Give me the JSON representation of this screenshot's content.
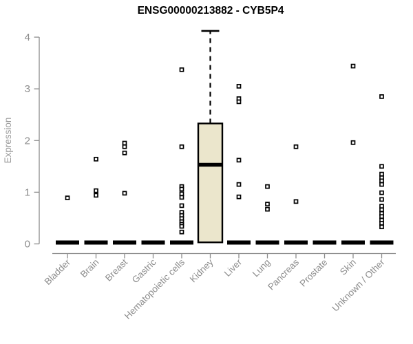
{
  "page": {
    "background": "#ffffff"
  },
  "chart_data": {
    "type": "boxplot",
    "title": "ENSG00000213882 - CYB5P4",
    "ylabel": "Expression",
    "xlabel": "",
    "ylim": [
      0,
      4
    ],
    "yticks": [
      0,
      1,
      2,
      3,
      4
    ],
    "grid": false,
    "legend_position": "none",
    "categories": [
      "Bladder",
      "Brain",
      "Breast",
      "Gastric",
      "Hematopoietic cells",
      "Kidney",
      "Liver",
      "Lung",
      "Pancreas",
      "Prostate",
      "Skin",
      "Unknown / Other"
    ],
    "series": [
      {
        "category": "Bladder",
        "q1": 0,
        "median": 0,
        "q3": 0,
        "whisker_low": 0,
        "whisker_high": 0,
        "outliers": [
          0.89
        ]
      },
      {
        "category": "Brain",
        "q1": 0,
        "median": 0,
        "q3": 0,
        "whisker_low": 0,
        "whisker_high": 0,
        "outliers": [
          1.64,
          1.03,
          0.94
        ]
      },
      {
        "category": "Breast",
        "q1": 0,
        "median": 0,
        "q3": 0,
        "whisker_low": 0,
        "whisker_high": 0,
        "outliers": [
          1.95,
          1.88,
          1.76,
          0.98
        ]
      },
      {
        "category": "Gastric",
        "q1": 0,
        "median": 0,
        "q3": 0,
        "whisker_low": 0,
        "whisker_high": 0,
        "outliers": []
      },
      {
        "category": "Hematopoietic cells",
        "q1": 0,
        "median": 0,
        "q3": 0,
        "whisker_low": 0,
        "whisker_high": 0,
        "outliers": [
          3.37,
          1.88,
          1.11,
          1.06,
          0.97,
          0.9,
          0.74,
          0.61,
          0.55,
          0.49,
          0.43,
          0.38,
          0.34,
          0.23
        ]
      },
      {
        "category": "Kidney",
        "q1": 0.03,
        "median": 1.53,
        "q3": 2.33,
        "whisker_low": 0.03,
        "whisker_high": 4.12,
        "outliers": []
      },
      {
        "category": "Liver",
        "q1": 0,
        "median": 0,
        "q3": 0,
        "whisker_low": 0,
        "whisker_high": 0,
        "outliers": [
          3.05,
          2.81,
          2.75,
          1.62,
          1.15,
          0.91
        ]
      },
      {
        "category": "Lung",
        "q1": 0,
        "median": 0,
        "q3": 0,
        "whisker_low": 0,
        "whisker_high": 0,
        "outliers": [
          1.11,
          0.77,
          0.67
        ]
      },
      {
        "category": "Pancreas",
        "q1": 0,
        "median": 0,
        "q3": 0,
        "whisker_low": 0,
        "whisker_high": 0,
        "outliers": [
          1.88,
          0.82
        ]
      },
      {
        "category": "Prostate",
        "q1": 0,
        "median": 0,
        "q3": 0,
        "whisker_low": 0,
        "whisker_high": 0,
        "outliers": []
      },
      {
        "category": "Skin",
        "q1": 0,
        "median": 0,
        "q3": 0,
        "whisker_low": 0,
        "whisker_high": 0,
        "outliers": [
          3.44,
          1.96
        ]
      },
      {
        "category": "Unknown / Other",
        "q1": 0,
        "median": 0,
        "q3": 0,
        "whisker_low": 0,
        "whisker_high": 0,
        "outliers": [
          2.85,
          1.5,
          1.35,
          1.28,
          1.22,
          1.15,
          0.99,
          0.86,
          0.73,
          0.66,
          0.59,
          0.53,
          0.46,
          0.4,
          0.33
        ]
      }
    ],
    "colors": {
      "box_fill": "#EBE6CC",
      "box_stroke": "#000000",
      "median": "#000000",
      "zero_bar": "#000000",
      "outlier_stroke": "#000000",
      "outlier_fill": "#FFFFFF",
      "axis": "#8C8C8C",
      "tick_label": "#8C8C8C",
      "axis_label": "#9A9A9A",
      "title": "#000000",
      "background": "#FFFFFF"
    }
  }
}
